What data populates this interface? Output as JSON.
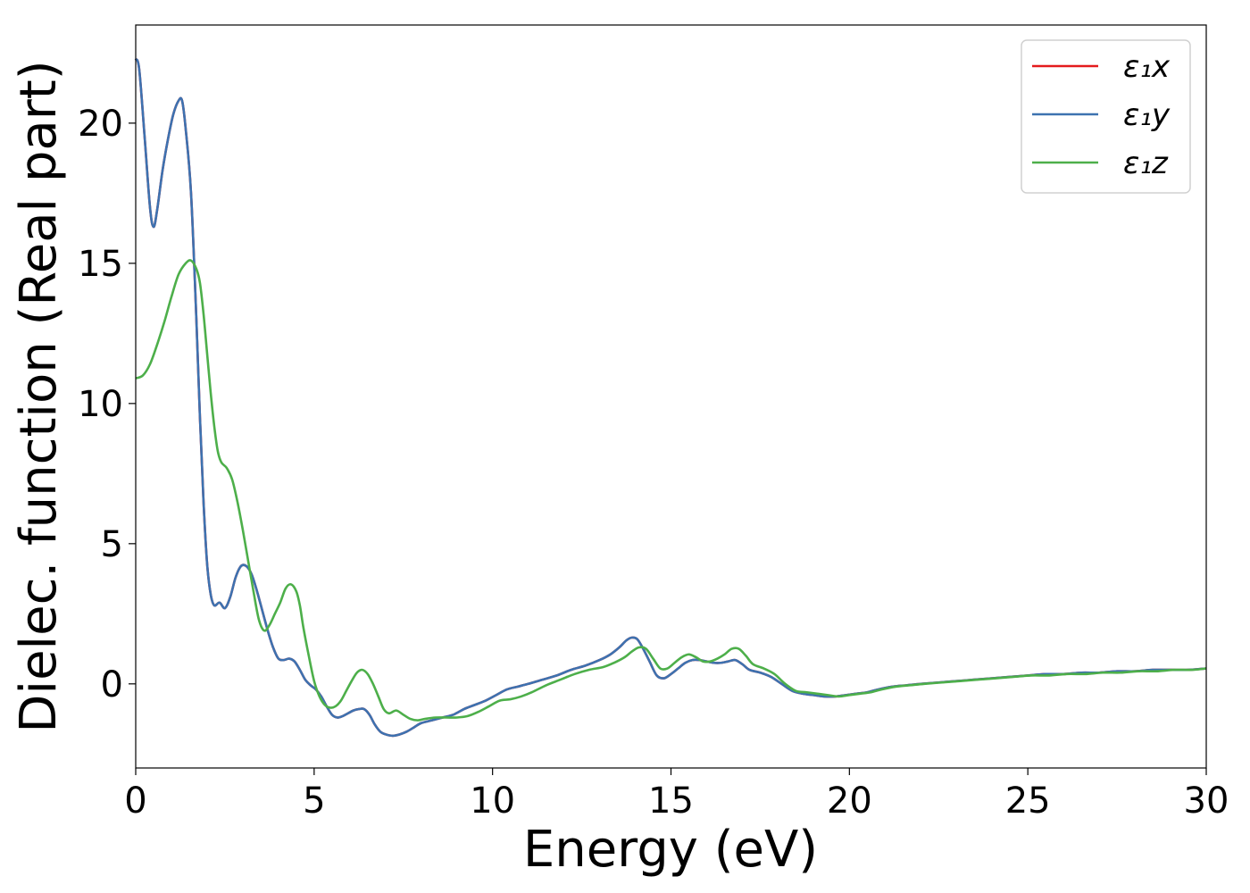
{
  "chart_data": {
    "type": "line",
    "title": "",
    "xlabel": "Energy (eV)",
    "ylabel": "Dielec. function (Real part)",
    "xlim": [
      0,
      30
    ],
    "ylim": [
      -3,
      23.5
    ],
    "xticks": [
      0,
      5,
      10,
      15,
      20,
      25,
      30
    ],
    "yticks": [
      0,
      5,
      10,
      15,
      20
    ],
    "grid": false,
    "legend_position": "top-right",
    "series": [
      {
        "name": "ε₁x",
        "color": "#e41a1c",
        "x": [
          0,
          0.1,
          0.25,
          0.4,
          0.5,
          0.6,
          0.75,
          0.9,
          1.05,
          1.2,
          1.3,
          1.4,
          1.55,
          1.7,
          1.8,
          1.9,
          2.0,
          2.1,
          2.2,
          2.35,
          2.5,
          2.65,
          2.8,
          2.95,
          3.1,
          3.25,
          3.4,
          3.55,
          3.7,
          3.85,
          4.0,
          4.15,
          4.3,
          4.45,
          4.6,
          4.75,
          4.9,
          5.05,
          5.2,
          5.35,
          5.5,
          5.65,
          5.8,
          5.95,
          6.1,
          6.25,
          6.4,
          6.55,
          6.7,
          6.85,
          7.0,
          7.2,
          7.4,
          7.6,
          7.8,
          8.0,
          8.3,
          8.6,
          8.9,
          9.2,
          9.5,
          9.8,
          10.1,
          10.4,
          10.7,
          11.0,
          11.4,
          11.8,
          12.2,
          12.6,
          13.0,
          13.3,
          13.55,
          13.75,
          13.9,
          14.05,
          14.2,
          14.4,
          14.6,
          14.8,
          15.0,
          15.2,
          15.4,
          15.6,
          15.8,
          16.0,
          16.2,
          16.4,
          16.6,
          16.8,
          17.0,
          17.2,
          17.5,
          17.8,
          18.1,
          18.4,
          18.7,
          19.0,
          19.3,
          19.6,
          19.9,
          20.2,
          20.5,
          20.8,
          21.2,
          21.6,
          22.0,
          22.5,
          23.0,
          23.5,
          24.0,
          24.5,
          25.0,
          25.5,
          26.0,
          26.5,
          27.0,
          27.5,
          28.0,
          28.5,
          29.0,
          29.5,
          30.0
        ],
        "values": [
          22.3,
          21.9,
          19.5,
          17.0,
          16.3,
          16.9,
          18.3,
          19.4,
          20.3,
          20.8,
          20.8,
          19.8,
          17.5,
          13.0,
          9.5,
          6.5,
          4.3,
          3.2,
          2.8,
          2.9,
          2.7,
          3.1,
          3.8,
          4.2,
          4.2,
          3.9,
          3.3,
          2.6,
          1.9,
          1.3,
          0.9,
          0.85,
          0.9,
          0.8,
          0.5,
          0.15,
          -0.05,
          -0.2,
          -0.45,
          -0.8,
          -1.1,
          -1.2,
          -1.15,
          -1.05,
          -0.95,
          -0.9,
          -0.9,
          -1.1,
          -1.45,
          -1.7,
          -1.8,
          -1.85,
          -1.8,
          -1.7,
          -1.55,
          -1.4,
          -1.3,
          -1.2,
          -1.1,
          -0.9,
          -0.75,
          -0.6,
          -0.4,
          -0.2,
          -0.1,
          0.0,
          0.15,
          0.3,
          0.5,
          0.65,
          0.85,
          1.05,
          1.3,
          1.55,
          1.65,
          1.6,
          1.3,
          0.8,
          0.3,
          0.2,
          0.35,
          0.55,
          0.75,
          0.85,
          0.85,
          0.8,
          0.75,
          0.75,
          0.8,
          0.85,
          0.7,
          0.5,
          0.4,
          0.25,
          0.0,
          -0.25,
          -0.35,
          -0.4,
          -0.45,
          -0.45,
          -0.4,
          -0.35,
          -0.3,
          -0.2,
          -0.1,
          -0.05,
          0.0,
          0.05,
          0.1,
          0.15,
          0.2,
          0.25,
          0.3,
          0.35,
          0.35,
          0.4,
          0.4,
          0.45,
          0.45,
          0.5,
          0.5,
          0.5,
          0.55
        ]
      },
      {
        "name": "ε₁y",
        "color": "#3d72b0",
        "x": [
          0,
          0.1,
          0.25,
          0.4,
          0.5,
          0.6,
          0.75,
          0.9,
          1.05,
          1.2,
          1.3,
          1.4,
          1.55,
          1.7,
          1.8,
          1.9,
          2.0,
          2.1,
          2.2,
          2.35,
          2.5,
          2.65,
          2.8,
          2.95,
          3.1,
          3.25,
          3.4,
          3.55,
          3.7,
          3.85,
          4.0,
          4.15,
          4.3,
          4.45,
          4.6,
          4.75,
          4.9,
          5.05,
          5.2,
          5.35,
          5.5,
          5.65,
          5.8,
          5.95,
          6.1,
          6.25,
          6.4,
          6.55,
          6.7,
          6.85,
          7.0,
          7.2,
          7.4,
          7.6,
          7.8,
          8.0,
          8.3,
          8.6,
          8.9,
          9.2,
          9.5,
          9.8,
          10.1,
          10.4,
          10.7,
          11.0,
          11.4,
          11.8,
          12.2,
          12.6,
          13.0,
          13.3,
          13.55,
          13.75,
          13.9,
          14.05,
          14.2,
          14.4,
          14.6,
          14.8,
          15.0,
          15.2,
          15.4,
          15.6,
          15.8,
          16.0,
          16.2,
          16.4,
          16.6,
          16.8,
          17.0,
          17.2,
          17.5,
          17.8,
          18.1,
          18.4,
          18.7,
          19.0,
          19.3,
          19.6,
          19.9,
          20.2,
          20.5,
          20.8,
          21.2,
          21.6,
          22.0,
          22.5,
          23.0,
          23.5,
          24.0,
          24.5,
          25.0,
          25.5,
          26.0,
          26.5,
          27.0,
          27.5,
          28.0,
          28.5,
          29.0,
          29.5,
          30.0
        ],
        "values": [
          22.3,
          21.9,
          19.5,
          17.0,
          16.3,
          16.9,
          18.3,
          19.4,
          20.3,
          20.8,
          20.8,
          19.8,
          17.5,
          13.0,
          9.5,
          6.5,
          4.3,
          3.2,
          2.8,
          2.9,
          2.7,
          3.1,
          3.8,
          4.2,
          4.2,
          3.9,
          3.3,
          2.6,
          1.9,
          1.3,
          0.9,
          0.85,
          0.9,
          0.8,
          0.5,
          0.15,
          -0.05,
          -0.2,
          -0.45,
          -0.8,
          -1.1,
          -1.2,
          -1.15,
          -1.05,
          -0.95,
          -0.9,
          -0.9,
          -1.1,
          -1.45,
          -1.7,
          -1.8,
          -1.85,
          -1.8,
          -1.7,
          -1.55,
          -1.4,
          -1.3,
          -1.2,
          -1.1,
          -0.9,
          -0.75,
          -0.6,
          -0.4,
          -0.2,
          -0.1,
          0.0,
          0.15,
          0.3,
          0.5,
          0.65,
          0.85,
          1.05,
          1.3,
          1.55,
          1.65,
          1.6,
          1.3,
          0.8,
          0.3,
          0.2,
          0.35,
          0.55,
          0.75,
          0.85,
          0.85,
          0.8,
          0.75,
          0.75,
          0.8,
          0.85,
          0.7,
          0.5,
          0.4,
          0.25,
          0.0,
          -0.25,
          -0.35,
          -0.4,
          -0.45,
          -0.45,
          -0.4,
          -0.35,
          -0.3,
          -0.2,
          -0.1,
          -0.05,
          0.0,
          0.05,
          0.1,
          0.15,
          0.2,
          0.25,
          0.3,
          0.35,
          0.35,
          0.4,
          0.4,
          0.45,
          0.45,
          0.5,
          0.5,
          0.5,
          0.55
        ]
      },
      {
        "name": "ε₁z",
        "color": "#4daf4a",
        "x": [
          0,
          0.2,
          0.4,
          0.6,
          0.8,
          1.0,
          1.2,
          1.4,
          1.55,
          1.7,
          1.8,
          1.9,
          2.0,
          2.1,
          2.2,
          2.3,
          2.4,
          2.55,
          2.7,
          2.85,
          3.0,
          3.15,
          3.3,
          3.45,
          3.6,
          3.75,
          3.9,
          4.05,
          4.2,
          4.35,
          4.5,
          4.6,
          4.7,
          4.85,
          5.0,
          5.15,
          5.3,
          5.45,
          5.6,
          5.75,
          5.9,
          6.05,
          6.2,
          6.35,
          6.5,
          6.65,
          6.8,
          6.95,
          7.1,
          7.3,
          7.5,
          7.7,
          7.9,
          8.1,
          8.4,
          8.7,
          9.0,
          9.3,
          9.6,
          9.9,
          10.2,
          10.5,
          10.8,
          11.1,
          11.5,
          11.9,
          12.3,
          12.7,
          13.1,
          13.4,
          13.7,
          13.9,
          14.1,
          14.3,
          14.5,
          14.7,
          14.9,
          15.1,
          15.3,
          15.5,
          15.7,
          15.9,
          16.1,
          16.3,
          16.5,
          16.7,
          16.9,
          17.1,
          17.3,
          17.6,
          17.9,
          18.2,
          18.5,
          18.8,
          19.1,
          19.4,
          19.7,
          20.0,
          20.3,
          20.6,
          20.9,
          21.3,
          21.7,
          22.1,
          22.6,
          23.1,
          23.6,
          24.1,
          24.6,
          25.1,
          25.6,
          26.1,
          26.6,
          27.1,
          27.6,
          28.1,
          28.6,
          29.1,
          29.6,
          30.0
        ],
        "values": [
          10.9,
          11.0,
          11.4,
          12.1,
          12.9,
          13.8,
          14.6,
          15.0,
          15.1,
          14.8,
          14.3,
          13.2,
          11.8,
          10.4,
          9.2,
          8.3,
          7.9,
          7.7,
          7.3,
          6.5,
          5.5,
          4.4,
          3.3,
          2.3,
          1.9,
          2.1,
          2.5,
          2.9,
          3.4,
          3.55,
          3.3,
          2.8,
          2.0,
          1.0,
          0.1,
          -0.45,
          -0.75,
          -0.85,
          -0.8,
          -0.6,
          -0.25,
          0.1,
          0.4,
          0.5,
          0.35,
          0.0,
          -0.45,
          -0.9,
          -1.05,
          -0.95,
          -1.1,
          -1.25,
          -1.3,
          -1.25,
          -1.2,
          -1.2,
          -1.2,
          -1.15,
          -1.0,
          -0.8,
          -0.6,
          -0.55,
          -0.45,
          -0.3,
          -0.05,
          0.15,
          0.35,
          0.5,
          0.6,
          0.75,
          0.95,
          1.15,
          1.3,
          1.25,
          0.9,
          0.55,
          0.55,
          0.75,
          0.95,
          1.05,
          0.95,
          0.8,
          0.8,
          0.9,
          1.05,
          1.25,
          1.25,
          1.0,
          0.7,
          0.55,
          0.35,
          0.0,
          -0.25,
          -0.3,
          -0.35,
          -0.4,
          -0.45,
          -0.4,
          -0.35,
          -0.3,
          -0.2,
          -0.1,
          -0.05,
          0.0,
          0.05,
          0.1,
          0.15,
          0.2,
          0.25,
          0.3,
          0.3,
          0.35,
          0.35,
          0.4,
          0.4,
          0.45,
          0.45,
          0.5,
          0.5,
          0.55
        ]
      }
    ]
  }
}
